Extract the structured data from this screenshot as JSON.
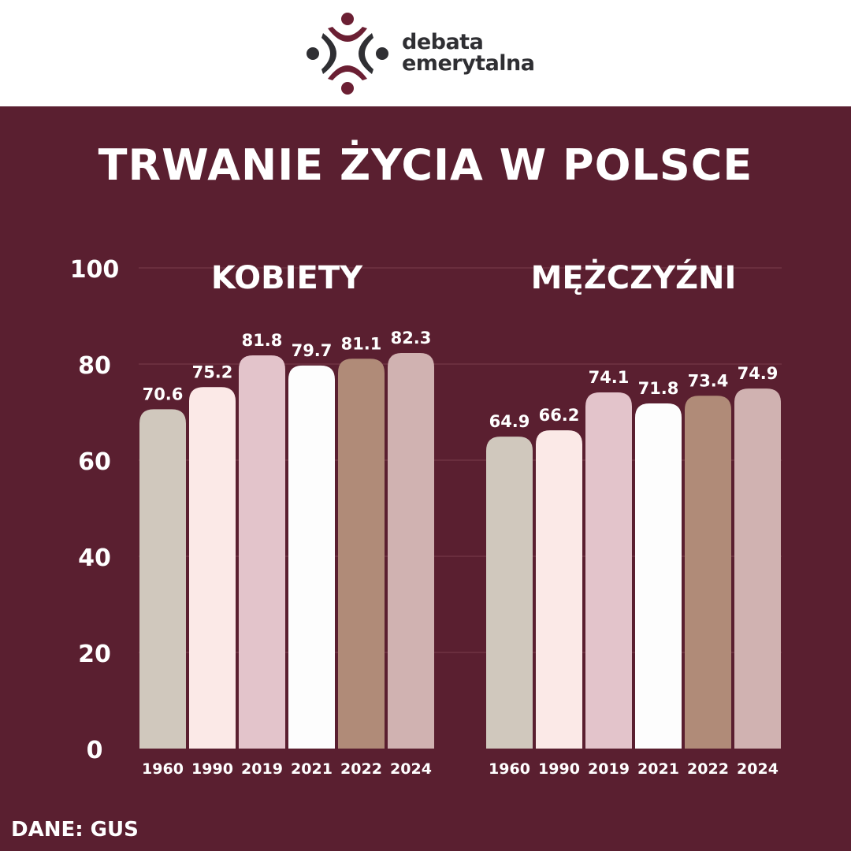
{
  "logo": {
    "line1": "debata",
    "line2": "emerytalna",
    "accent_color": "#6b1f33",
    "dark_color": "#2f2f33"
  },
  "title": "TRWANIE ŻYCIA W POLSCE",
  "source": "DANE: GUS",
  "chart_data": {
    "type": "bar",
    "ylim": [
      0,
      100
    ],
    "yticks": [
      0,
      20,
      40,
      60,
      80,
      100
    ],
    "grid": true,
    "groups": [
      {
        "label": "KOBIETY",
        "categories": [
          "1960",
          "1990",
          "2019",
          "2021",
          "2022",
          "2024"
        ],
        "values": [
          70.6,
          75.2,
          81.8,
          79.7,
          81.1,
          82.3
        ]
      },
      {
        "label": "MĘŻCZYŹNI",
        "categories": [
          "1960",
          "1990",
          "2019",
          "2021",
          "2022",
          "2024"
        ],
        "values": [
          64.9,
          66.2,
          74.1,
          71.8,
          73.4,
          74.9
        ]
      }
    ],
    "bar_colors": [
      "#d0c8bd",
      "#fbe9e7",
      "#e3c4cb",
      "#fdfdfd",
      "#b08b78",
      "#d0b2b1"
    ],
    "background_color": "#5a1f30"
  }
}
